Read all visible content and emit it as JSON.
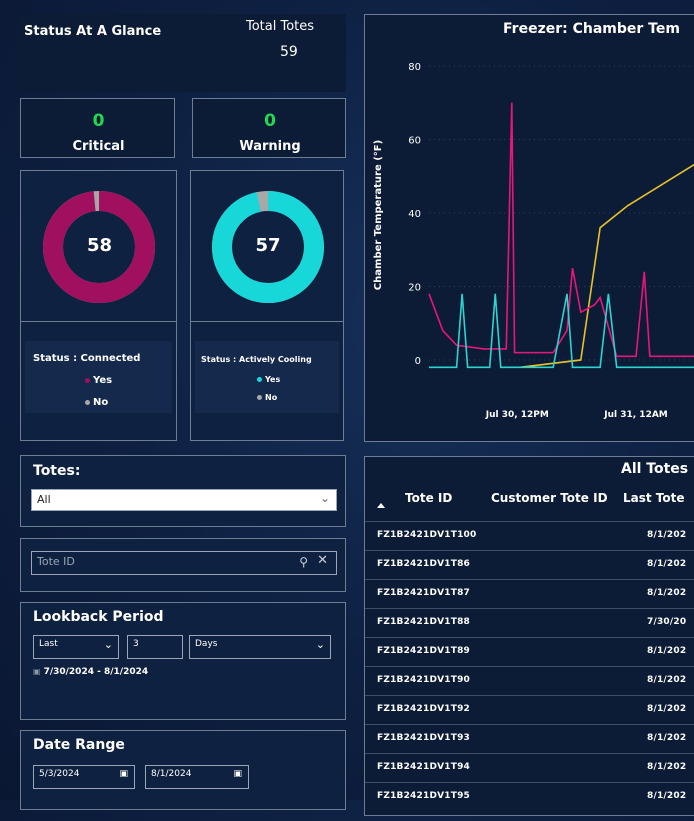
{
  "glance": {
    "title": "Status At A Glance",
    "total_label": "Total Totes",
    "total_value": "59"
  },
  "critical": {
    "value": "0",
    "label": "Critical"
  },
  "warning": {
    "value": "0",
    "label": "Warning"
  },
  "connected": {
    "value": "58",
    "fraction": 0.983,
    "color": "#a0105f",
    "legend_title": "Status : Connected",
    "yes": "Yes",
    "no": "No"
  },
  "cooling": {
    "value": "57",
    "fraction": 0.966,
    "color": "#17d7d9",
    "legend_title": "Status : Actively Cooling",
    "yes": "Yes",
    "no": "No"
  },
  "totes_filter": {
    "label": "Totes:",
    "value": "All"
  },
  "tote_search": {
    "placeholder": "Tote ID"
  },
  "lookback": {
    "title": "Lookback Period",
    "mode": "Last",
    "count": "3",
    "unit": "Days",
    "range_text": "7/30/2024 - 8/1/2024"
  },
  "date_range": {
    "title": "Date Range",
    "start": "5/3/2024",
    "end": "8/1/2024"
  },
  "chart_panel": {
    "title": "Freezer: Chamber Tem"
  },
  "chart_data": {
    "type": "line",
    "title": "Freezer: Chamber Tem",
    "ylabel": "Chamber Temperature (°F)",
    "ylim": [
      -3,
      83
    ],
    "yticks": [
      "80",
      "60",
      "40",
      "20",
      "0"
    ],
    "xticks": [
      "Jul 30, 12PM",
      "Jul 31, 12AM"
    ],
    "series": [
      {
        "color": "#e8c22a",
        "values": [
          [
            0.33,
            -2
          ],
          [
            0.55,
            0
          ],
          [
            0.62,
            36
          ],
          [
            0.72,
            42
          ],
          [
            1.0,
            55
          ]
        ]
      },
      {
        "color": "#e8157d",
        "values": [
          [
            0.0,
            18
          ],
          [
            0.05,
            8
          ],
          [
            0.1,
            4
          ],
          [
            0.2,
            3
          ],
          [
            0.28,
            3
          ],
          [
            0.3,
            70
          ],
          [
            0.31,
            2
          ],
          [
            0.45,
            2
          ],
          [
            0.5,
            8
          ],
          [
            0.52,
            25
          ],
          [
            0.55,
            13
          ],
          [
            0.6,
            15
          ],
          [
            0.62,
            17
          ],
          [
            0.68,
            1
          ],
          [
            0.75,
            1
          ],
          [
            0.78,
            24
          ],
          [
            0.8,
            1
          ],
          [
            1.0,
            1
          ]
        ]
      },
      {
        "color": "#2fd3ce",
        "values": [
          [
            0.0,
            -2
          ],
          [
            0.1,
            -2
          ],
          [
            0.12,
            18
          ],
          [
            0.14,
            -2
          ],
          [
            0.22,
            -2
          ],
          [
            0.24,
            18
          ],
          [
            0.26,
            -2
          ],
          [
            0.45,
            -2
          ],
          [
            0.5,
            18
          ],
          [
            0.52,
            -2
          ],
          [
            0.62,
            -2
          ],
          [
            0.65,
            18
          ],
          [
            0.68,
            -2
          ],
          [
            1.0,
            -2
          ]
        ]
      }
    ]
  },
  "table": {
    "title": "All Totes",
    "columns": [
      "Tote ID",
      "Customer Tote ID",
      "Last Tote"
    ],
    "rows": [
      {
        "id": "FZ1B2421DV1T100",
        "date": "8/1/202"
      },
      {
        "id": "FZ1B2421DV1T86",
        "date": "8/1/202"
      },
      {
        "id": "FZ1B2421DV1T87",
        "date": "8/1/202"
      },
      {
        "id": "FZ1B2421DV1T88",
        "date": "7/30/20"
      },
      {
        "id": "FZ1B2421DV1T89",
        "date": "8/1/202"
      },
      {
        "id": "FZ1B2421DV1T90",
        "date": "8/1/202"
      },
      {
        "id": "FZ1B2421DV1T92",
        "date": "8/1/202"
      },
      {
        "id": "FZ1B2421DV1T93",
        "date": "8/1/202"
      },
      {
        "id": "FZ1B2421DV1T94",
        "date": "8/1/202"
      },
      {
        "id": "FZ1B2421DV1T95",
        "date": "8/1/202"
      }
    ]
  }
}
